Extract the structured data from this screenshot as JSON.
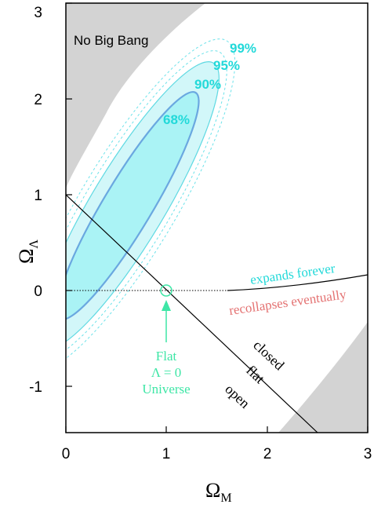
{
  "chart_data": {
    "type": "contour",
    "title": "",
    "xlabel": "Ω",
    "xlabel_sub": "M",
    "ylabel": "Ω",
    "ylabel_sub": "Λ",
    "xlim": [
      0,
      3
    ],
    "ylim": [
      -1.5,
      3
    ],
    "x_ticks": [
      "0",
      "1",
      "2",
      "3"
    ],
    "y_ticks": [
      "-1",
      "0",
      "1",
      "2",
      "3"
    ],
    "grid": false,
    "regions": [
      {
        "label": "No Big Bang",
        "color": "#d3d3d3"
      },
      {
        "label": "",
        "color": "#d3d3d3"
      }
    ],
    "confidence_contours": [
      {
        "label": "68%",
        "level": 68,
        "center": [
          0.62,
          1.0
        ],
        "fill": "#aaf3f5"
      },
      {
        "label": "90%",
        "level": 90,
        "fill": "#d2f7f9"
      },
      {
        "label": "95%",
        "level": 95
      },
      {
        "label": "99%",
        "level": 99
      }
    ],
    "lines": [
      {
        "name": "flat",
        "points": [
          [
            0,
            1
          ],
          [
            2.5,
            -1.5
          ]
        ]
      },
      {
        "name": "expansion boundary",
        "points": [
          [
            0,
            0
          ],
          [
            1,
            0
          ],
          [
            1.5,
            0.01
          ],
          [
            2.0,
            0.04
          ],
          [
            2.5,
            0.09
          ],
          [
            3.0,
            0.16
          ]
        ]
      }
    ],
    "annotations": [
      {
        "text": "expands forever",
        "color": "#22d9d9"
      },
      {
        "text": "recollapses eventually",
        "color": "#e47272"
      },
      {
        "text": "closed",
        "color": "#000000"
      },
      {
        "text": "flat",
        "color": "#000000"
      },
      {
        "text": "open",
        "color": "#000000"
      }
    ],
    "marker": {
      "point": [
        1,
        0
      ],
      "lines": [
        "Flat",
        "Λ = 0",
        "Universe"
      ],
      "color": "#3ee6a6"
    }
  }
}
